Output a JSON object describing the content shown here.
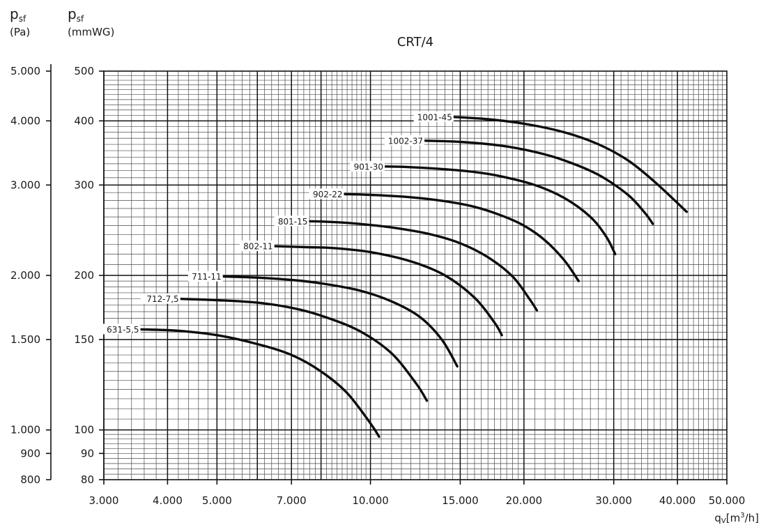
{
  "chart_data": {
    "type": "line",
    "title": "CRT/4",
    "x_scale": "log",
    "y_scale": "log",
    "grid": true,
    "legend": "inline labels at curve starts",
    "xlabel": {
      "main": "q",
      "sub": "V",
      "unit": "[m",
      "sup": "3",
      "unit_end": "/h]"
    },
    "ylabel_pa": {
      "main": "p",
      "sub": "sf",
      "unit": "(Pa)"
    },
    "ylabel_mm": {
      "main": "p",
      "sub": "sf",
      "unit": "(mmWG)"
    },
    "xlim": [
      3000,
      50000
    ],
    "ylim_mmwg": [
      80,
      500
    ],
    "ylim_pa": [
      800,
      5000
    ],
    "x_ticks": [
      {
        "value": 3000,
        "label": "3.000"
      },
      {
        "value": 4000,
        "label": "4.000"
      },
      {
        "value": 5000,
        "label": "5.000"
      },
      {
        "value": 7000,
        "label": "7.000"
      },
      {
        "value": 10000,
        "label": "10.000"
      },
      {
        "value": 15000,
        "label": "15.000"
      },
      {
        "value": 20000,
        "label": "20.000"
      },
      {
        "value": 30000,
        "label": "30.000"
      },
      {
        "value": 40000,
        "label": "40.000"
      },
      {
        "value": 50000,
        "label": "50.000"
      }
    ],
    "y_ticks_mmwg": [
      {
        "value": 80,
        "label": "80"
      },
      {
        "value": 90,
        "label": "90"
      },
      {
        "value": 100,
        "label": "100"
      },
      {
        "value": 150,
        "label": "150"
      },
      {
        "value": 200,
        "label": "200"
      },
      {
        "value": 300,
        "label": "300"
      },
      {
        "value": 400,
        "label": "400"
      },
      {
        "value": 500,
        "label": "500"
      }
    ],
    "y_ticks_pa": [
      {
        "value": 800,
        "label": "800"
      },
      {
        "value": 900,
        "label": "900"
      },
      {
        "value": 1000,
        "label": "1.000"
      },
      {
        "value": 1500,
        "label": "1.500"
      },
      {
        "value": 2000,
        "label": "2.000"
      },
      {
        "value": 3000,
        "label": "3.000"
      },
      {
        "value": 4000,
        "label": "4.000"
      },
      {
        "value": 5000,
        "label": "5.000"
      }
    ],
    "series": [
      {
        "name": "631-5,5",
        "points": [
          [
            3550,
            157
          ],
          [
            4200,
            156
          ],
          [
            5000,
            153
          ],
          [
            6000,
            147
          ],
          [
            7000,
            140
          ],
          [
            8000,
            130
          ],
          [
            9000,
            118
          ],
          [
            10000,
            103
          ],
          [
            10400,
            97
          ]
        ]
      },
      {
        "name": "712-7,5",
        "points": [
          [
            4250,
            180
          ],
          [
            5000,
            179
          ],
          [
            6000,
            177
          ],
          [
            7000,
            173
          ],
          [
            8000,
            167
          ],
          [
            9500,
            156
          ],
          [
            11000,
            141
          ],
          [
            12300,
            123
          ],
          [
            12900,
            114
          ]
        ]
      },
      {
        "name": "711-11",
        "points": [
          [
            5150,
            199
          ],
          [
            6000,
            198
          ],
          [
            7000,
            196
          ],
          [
            8000,
            193
          ],
          [
            9500,
            187
          ],
          [
            11000,
            178
          ],
          [
            12500,
            166
          ],
          [
            13800,
            150
          ],
          [
            14800,
            133
          ]
        ]
      },
      {
        "name": "802-11",
        "points": [
          [
            6500,
            228
          ],
          [
            7500,
            227
          ],
          [
            8500,
            226
          ],
          [
            10000,
            222
          ],
          [
            12000,
            213
          ],
          [
            14000,
            200
          ],
          [
            16000,
            181
          ],
          [
            17500,
            162
          ],
          [
            18100,
            153
          ]
        ]
      },
      {
        "name": "801-15",
        "points": [
          [
            7600,
            255
          ],
          [
            8500,
            254
          ],
          [
            9500,
            252
          ],
          [
            11000,
            248
          ],
          [
            13000,
            241
          ],
          [
            15000,
            231
          ],
          [
            17000,
            217
          ],
          [
            19000,
            199
          ],
          [
            20500,
            180
          ],
          [
            21200,
            171
          ]
        ]
      },
      {
        "name": "902-22",
        "points": [
          [
            8900,
            288
          ],
          [
            10000,
            287
          ],
          [
            12000,
            284
          ],
          [
            14000,
            279
          ],
          [
            16000,
            272
          ],
          [
            18000,
            262
          ],
          [
            20000,
            250
          ],
          [
            22000,
            234
          ],
          [
            24000,
            214
          ],
          [
            25600,
            195
          ]
        ]
      },
      {
        "name": "901-30",
        "points": [
          [
            10700,
            326
          ],
          [
            12000,
            325
          ],
          [
            14000,
            322
          ],
          [
            16000,
            318
          ],
          [
            18000,
            312
          ],
          [
            21000,
            300
          ],
          [
            24000,
            283
          ],
          [
            27000,
            260
          ],
          [
            29000,
            238
          ],
          [
            30200,
            220
          ]
        ]
      },
      {
        "name": "1002-37",
        "points": [
          [
            12800,
            366
          ],
          [
            15000,
            364
          ],
          [
            18000,
            358
          ],
          [
            21000,
            348
          ],
          [
            24000,
            335
          ],
          [
            28000,
            314
          ],
          [
            32000,
            287
          ],
          [
            34500,
            265
          ],
          [
            35800,
            252
          ]
        ]
      },
      {
        "name": "1001-45",
        "points": [
          [
            14600,
            407
          ],
          [
            17000,
            403
          ],
          [
            20000,
            395
          ],
          [
            24000,
            380
          ],
          [
            28000,
            360
          ],
          [
            32000,
            335
          ],
          [
            36000,
            305
          ],
          [
            39500,
            280
          ],
          [
            41700,
            266
          ]
        ]
      }
    ]
  }
}
